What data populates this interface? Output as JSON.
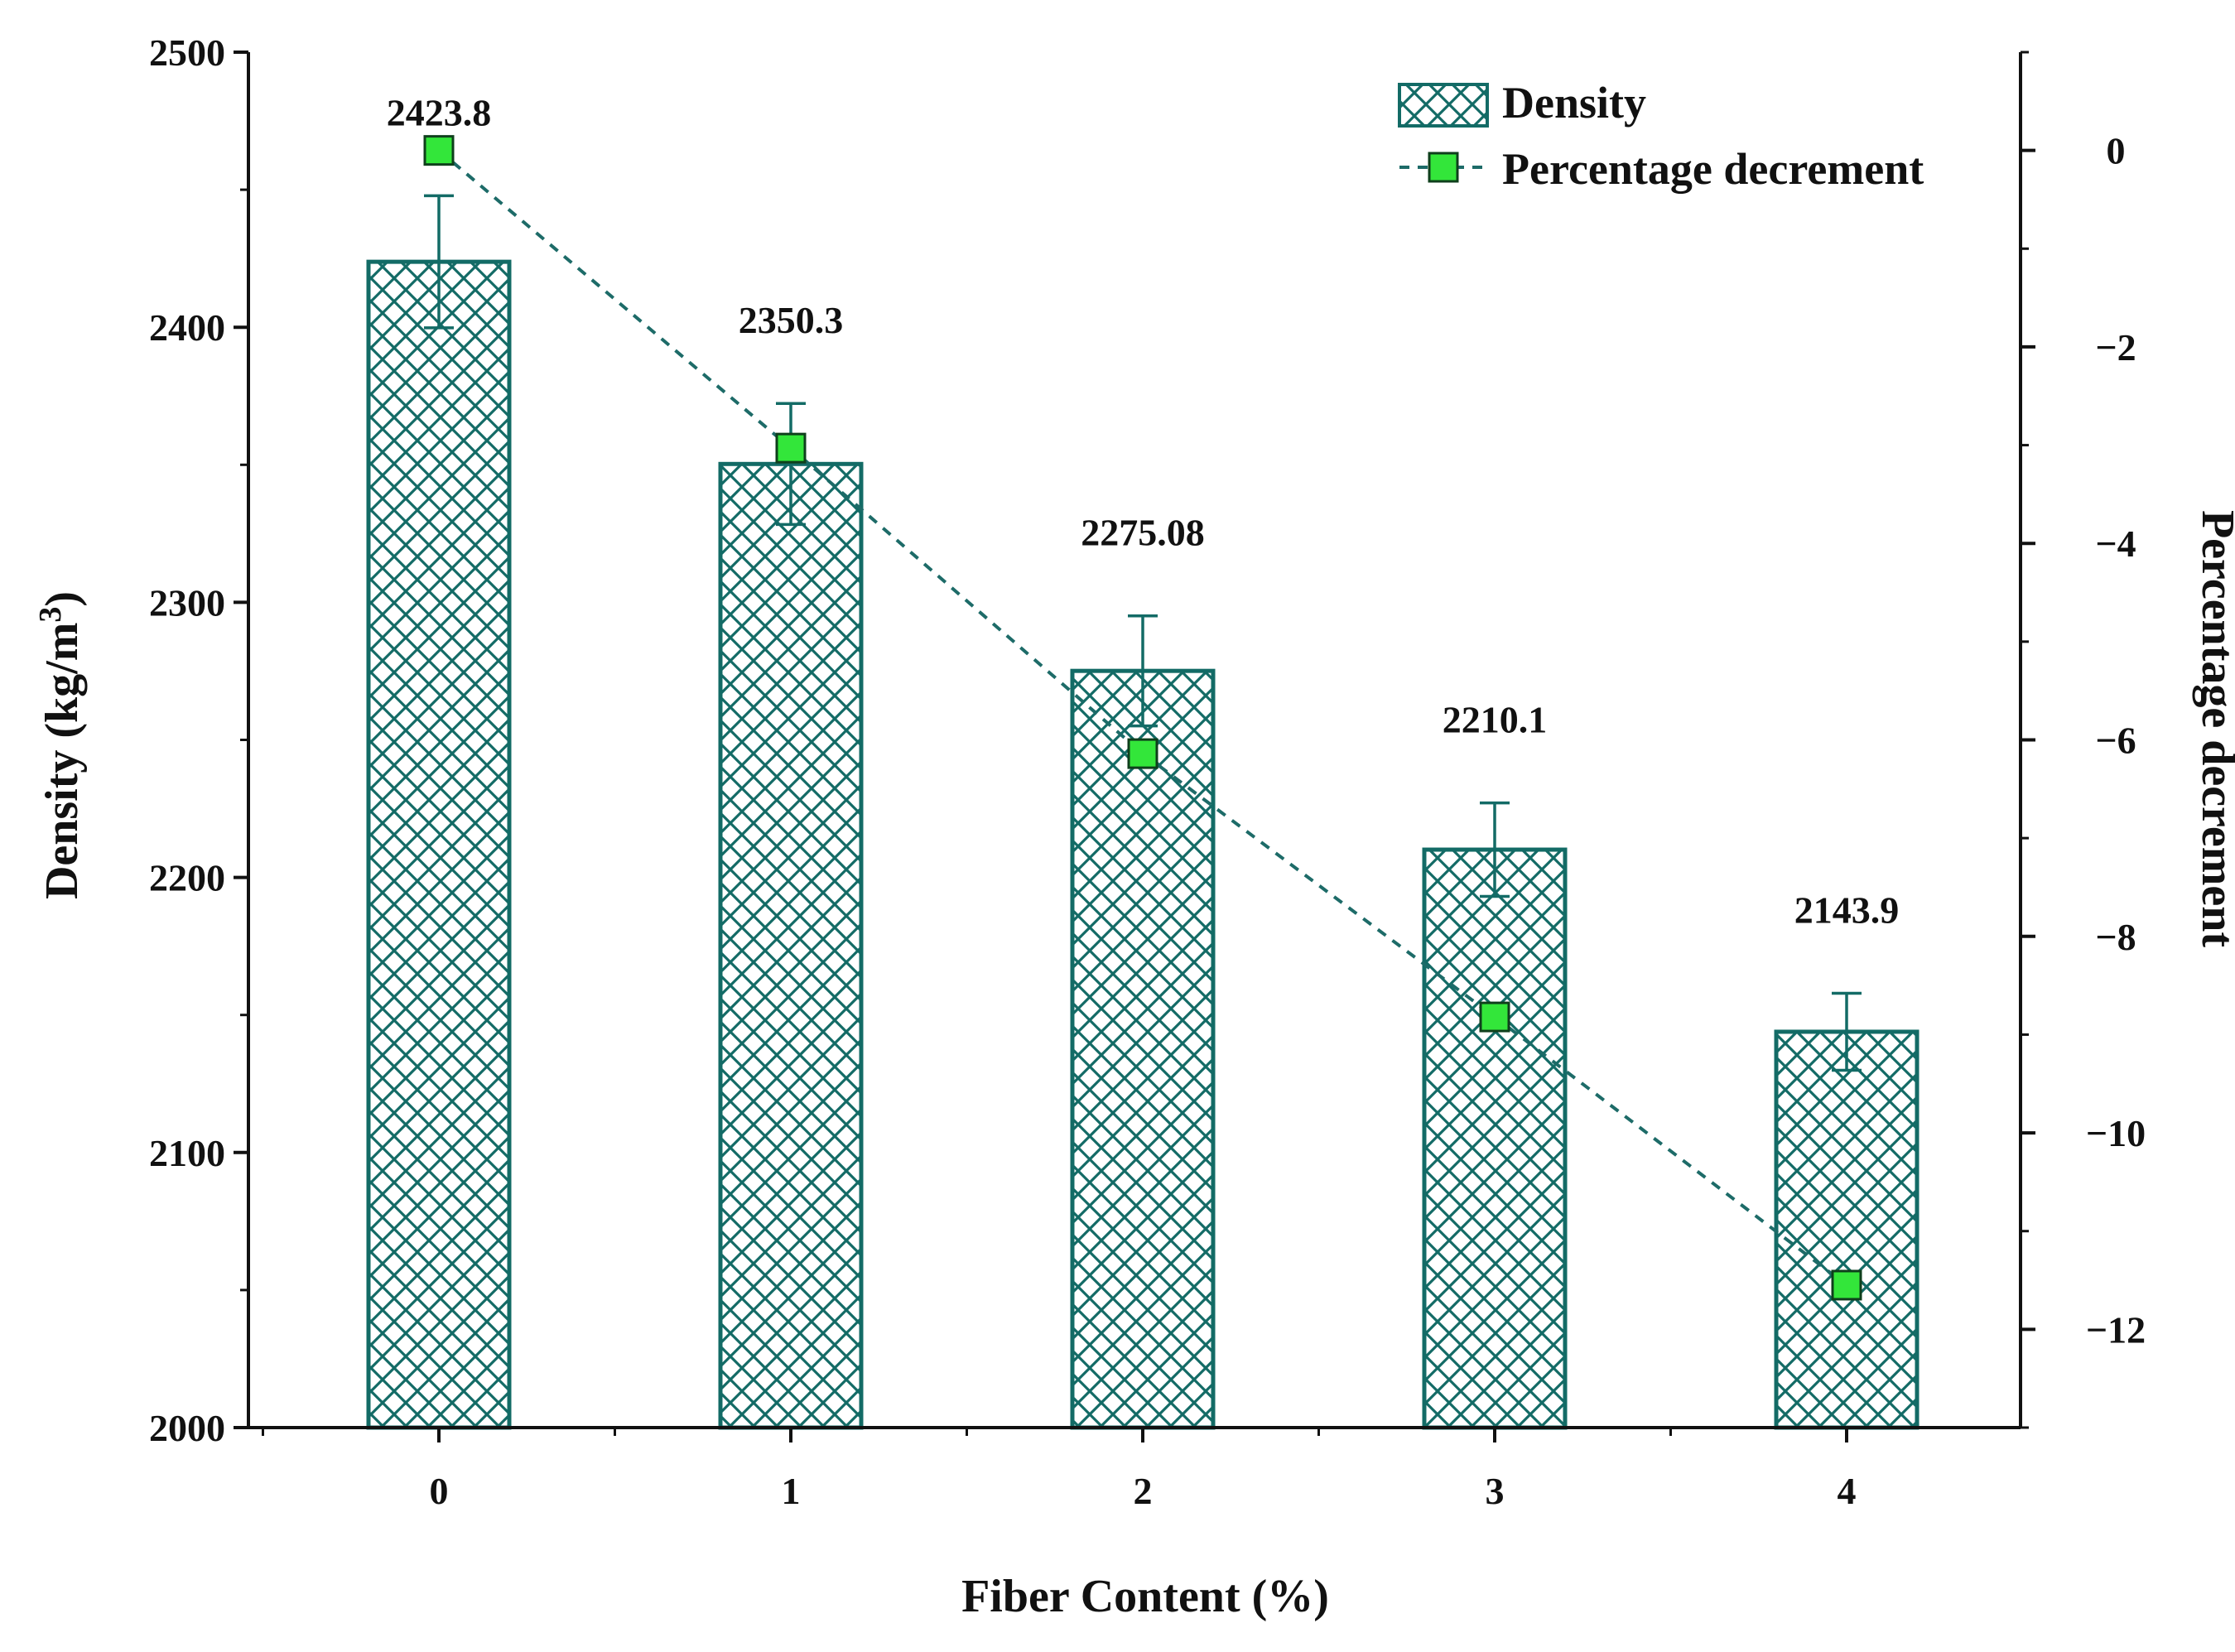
{
  "colors": {
    "bar_stroke": "#136b66",
    "line": "#1d6b68",
    "marker_fill": "#33e63a",
    "marker_stroke": "#0f3f1c",
    "axis": "#111111"
  },
  "chart_data": {
    "type": "bar",
    "xlabel": "Fiber Content (%)",
    "categories": [
      "0",
      "1",
      "2",
      "3",
      "4"
    ],
    "x_ticks": [
      "0",
      "1",
      "2",
      "3",
      "4"
    ],
    "left_axis": {
      "label_main": "Density (kg/m",
      "label_sup": "3",
      "label_end": ")",
      "ylim": [
        2000,
        2500
      ],
      "ticks": [
        2000,
        2100,
        2200,
        2300,
        2400,
        2500
      ]
    },
    "right_axis": {
      "label": "Percentage decrement",
      "ylim": [
        -13,
        1
      ],
      "ticks": [
        0,
        -2,
        -4,
        -6,
        -8,
        -10,
        -12
      ],
      "tick_labels": [
        "0",
        "−2",
        "−4",
        "−6",
        "−8",
        "−10",
        "−12"
      ]
    },
    "series": [
      {
        "name": "Density",
        "type": "bar",
        "axis": "left",
        "pattern": "crosshatch",
        "values": [
          2423.8,
          2350.3,
          2275.08,
          2210.1,
          2143.9
        ],
        "errors": [
          24,
          22,
          20,
          17,
          14
        ],
        "value_labels": [
          "2423.8",
          "2350.3",
          "2275.08",
          "2210.1",
          "2143.9"
        ]
      },
      {
        "name": "Percentage decrement",
        "type": "line",
        "axis": "right",
        "line_style": "dashed",
        "marker": "square",
        "values": [
          0,
          -3.03,
          -6.14,
          -8.82,
          -11.55
        ]
      }
    ],
    "legend": {
      "position": "top-right",
      "entries": [
        "Density",
        "Percentage decrement"
      ]
    }
  }
}
